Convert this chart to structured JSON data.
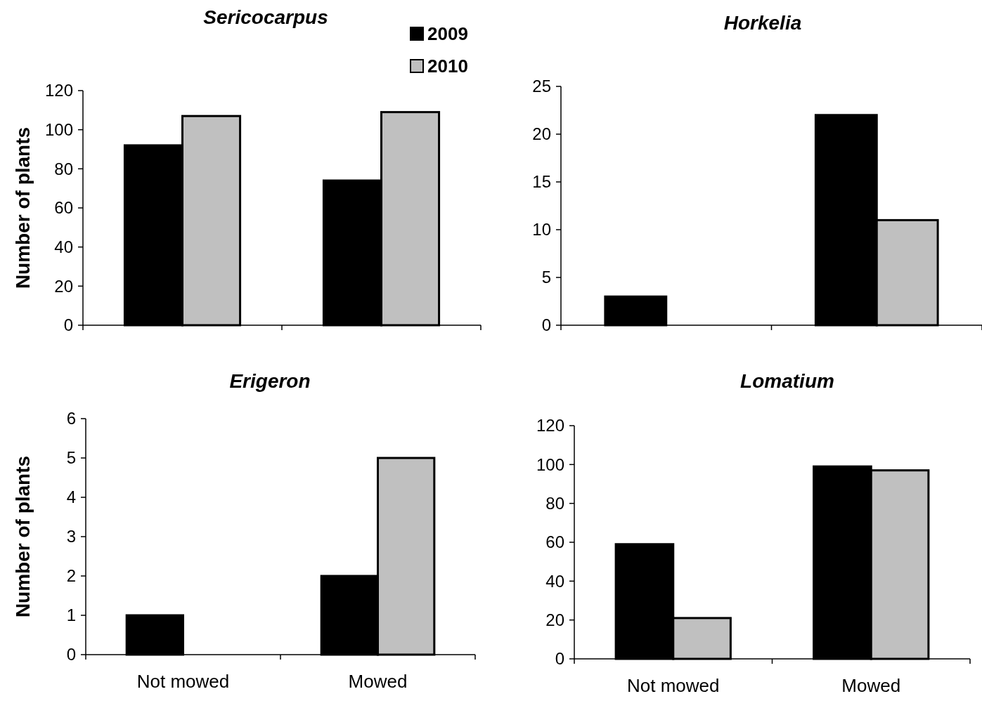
{
  "chart_data": [
    {
      "type": "bar",
      "title": "Sericocarpus",
      "ylabel": "Number of plants",
      "categories": [
        null,
        null
      ],
      "series": [
        {
          "name": "2009",
          "color": "#000000",
          "values": [
            92,
            74
          ]
        },
        {
          "name": "2010",
          "color": "#c0c0c0",
          "values": [
            107,
            109
          ]
        }
      ],
      "ylim": [
        0,
        120
      ],
      "yticks": [
        0,
        20,
        40,
        60,
        80,
        100,
        120
      ],
      "grid": false,
      "legend": "top right",
      "tick_labels": "y"
    },
    {
      "type": "bar",
      "title": "Horkelia",
      "categories": [
        null,
        null
      ],
      "series": [
        {
          "color": "#000000",
          "values": [
            3,
            22
          ]
        },
        {
          "color": "#c0c0c0",
          "values": [
            0,
            11
          ]
        }
      ],
      "ylim": [
        0,
        25
      ],
      "yticks": [
        0,
        5,
        10,
        15,
        20,
        25
      ],
      "grid": false,
      "legend": false,
      "tick_labels": "y"
    },
    {
      "type": "bar",
      "title": "Erigeron",
      "ylabel": "Number of plants",
      "categories": [
        "Not mowed",
        "Mowed"
      ],
      "series": [
        {
          "color": "#000000",
          "values": [
            1,
            2
          ]
        },
        {
          "color": "#c0c0c0",
          "values": [
            0,
            5
          ]
        }
      ],
      "ylim": [
        0,
        6
      ],
      "yticks": [
        0,
        1,
        2,
        3,
        4,
        5,
        6
      ],
      "grid": false,
      "legend": false
    },
    {
      "type": "bar",
      "title": "Lomatium",
      "categories": [
        "Not mowed",
        "Mowed"
      ],
      "series": [
        {
          "color": "#000000",
          "values": [
            59,
            99
          ]
        },
        {
          "color": "#c0c0c0",
          "values": [
            21,
            97
          ]
        }
      ],
      "ylim": [
        0,
        120
      ],
      "yticks": [
        0,
        20,
        40,
        60,
        80,
        100,
        120
      ],
      "grid": false,
      "legend": false
    }
  ]
}
